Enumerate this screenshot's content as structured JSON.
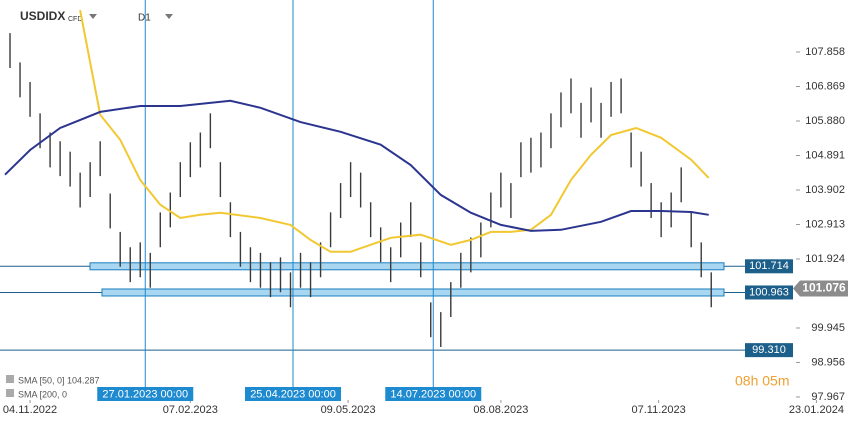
{
  "header": {
    "symbol": "USDIDX",
    "kind": "CFD",
    "timeframe": "D1",
    "timer": "08h 05m"
  },
  "chart_data": {
    "type": "ohlc",
    "xlim": [
      -12,
      331
    ],
    "ylim": [
      97.88,
      109.35
    ],
    "xticks": [
      {
        "value": 0,
        "label": "04.11.2022"
      },
      {
        "value": 64,
        "label": "07.02.2023"
      },
      {
        "value": 127,
        "label": "09.05.2023"
      },
      {
        "value": 188,
        "label": "08.08.2023"
      },
      {
        "value": 251,
        "label": "07.11.2023"
      },
      {
        "value": 314,
        "label": "23.01.2024"
      }
    ],
    "yticks": [
      107.858,
      106.869,
      {
        "value": 105.88,
        "label": "105.880"
      },
      104.891,
      103.902,
      102.913,
      101.924,
      99.945,
      98.956,
      97.967
    ],
    "x": [
      -8,
      -4,
      0,
      4,
      8,
      12,
      16,
      20,
      24,
      28,
      32,
      36,
      40,
      44,
      48,
      52,
      56,
      60,
      64,
      68,
      72,
      76,
      80,
      84,
      88,
      92,
      96,
      100,
      104,
      108,
      112,
      116,
      120,
      124,
      128,
      132,
      136,
      140,
      144,
      148,
      152,
      156,
      160,
      164,
      168,
      172,
      176,
      180,
      184,
      188,
      192,
      196,
      200,
      204,
      208,
      212,
      216,
      220,
      224,
      228,
      232,
      236,
      240,
      244,
      248,
      252,
      256,
      260,
      264,
      268,
      272
    ],
    "high": [
      108.4,
      107.56,
      107.0,
      106.1,
      105.55,
      105.3,
      105.0,
      104.4,
      104.7,
      105.3,
      103.8,
      102.7,
      102.26,
      102.4,
      102.1,
      103.26,
      103.83,
      104.7,
      105.27,
      105.55,
      106.1,
      104.7,
      103.55,
      102.7,
      102.26,
      102.1,
      101.83,
      101.97,
      101.54,
      102.1,
      101.83,
      102.4,
      103.26,
      104.1,
      104.7,
      104.4,
      103.55,
      102.83,
      102.26,
      102.97,
      103.55,
      102.4,
      100.68,
      100.4,
      101.26,
      102.1,
      102.54,
      102.97,
      103.83,
      104.4,
      104.1,
      105.27,
      105.4,
      105.55,
      106.1,
      106.7,
      107.1,
      106.4,
      106.84,
      106.4,
      107.0,
      107.1,
      105.55,
      105.0,
      104.1,
      103.55,
      103.83,
      104.55,
      103.26,
      102.4,
      101.54
    ],
    "low": [
      107.4,
      106.56,
      106.0,
      105.1,
      104.55,
      104.3,
      104.0,
      103.4,
      103.7,
      104.3,
      102.8,
      101.7,
      101.26,
      101.4,
      101.1,
      102.26,
      102.83,
      103.7,
      104.27,
      104.55,
      105.1,
      103.7,
      102.55,
      101.7,
      101.26,
      101.1,
      100.83,
      100.97,
      100.54,
      101.1,
      100.83,
      101.4,
      102.26,
      103.1,
      103.7,
      103.4,
      102.55,
      101.83,
      101.26,
      101.97,
      102.55,
      101.4,
      99.68,
      99.4,
      100.26,
      101.1,
      101.54,
      101.97,
      102.83,
      103.4,
      103.1,
      104.27,
      104.4,
      104.55,
      105.1,
      105.7,
      106.1,
      105.4,
      105.84,
      105.4,
      106.0,
      106.1,
      104.55,
      104.0,
      103.1,
      102.55,
      102.83,
      103.55,
      102.26,
      101.4,
      100.54
    ],
    "color": "#3a3a3a",
    "indicators": [
      {
        "label": "SMA [50, 0] 104.287",
        "color": "#f2c832",
        "x": [
          20,
          28,
          36,
          44,
          52,
          60,
          68,
          76,
          92,
          104,
          112,
          120,
          128,
          136,
          144,
          156,
          168,
          176,
          184,
          192,
          200,
          208,
          216,
          224,
          232,
          242,
          252,
          264,
          271
        ],
        "values": [
          109.06,
          106.06,
          105.34,
          104.19,
          103.48,
          103.1,
          103.19,
          103.25,
          103.1,
          102.9,
          102.47,
          102.13,
          102.13,
          102.33,
          102.53,
          102.62,
          102.33,
          102.47,
          102.7,
          102.7,
          102.76,
          103.19,
          104.19,
          104.91,
          105.48,
          105.68,
          105.4,
          104.77,
          104.25
        ]
      },
      {
        "label": "SMA [200, 0",
        "color": "#2b3590",
        "x": [
          -10,
          0,
          12,
          28,
          44,
          60,
          80,
          92,
          108,
          124,
          140,
          152,
          164,
          176,
          188,
          200,
          212,
          228,
          240,
          252,
          264,
          271
        ],
        "values": [
          104.34,
          105.05,
          105.68,
          106.14,
          106.31,
          106.31,
          106.46,
          106.26,
          105.85,
          105.57,
          105.2,
          104.62,
          103.76,
          103.25,
          102.9,
          102.73,
          102.76,
          102.99,
          103.3,
          103.3,
          103.27,
          103.19
        ]
      }
    ],
    "levels": {
      "values": [
        101.714,
        100.963,
        99.31
      ],
      "value_labels": [
        "101.714",
        "100.963",
        "99.310"
      ]
    },
    "current_price": 101.076,
    "vlines": [
      {
        "x": 46,
        "label": "27.01.2023 00:00"
      },
      {
        "x": 105,
        "label": "25.04.2023 00:00"
      },
      {
        "x": 161,
        "label": "14.07.2023 00:00"
      }
    ]
  }
}
